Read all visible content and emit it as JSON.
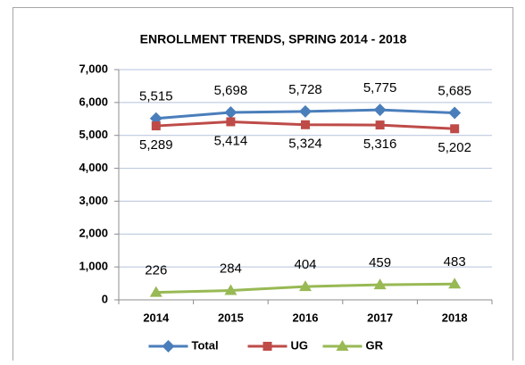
{
  "chart_data": {
    "type": "line",
    "title": "ENROLLMENT TRENDS,  SPRING 2014 - 2018",
    "categories": [
      "2014",
      "2015",
      "2016",
      "2017",
      "2018"
    ],
    "series": [
      {
        "name": "Total",
        "color": "#4a7ebb",
        "marker": "diamond",
        "values": [
          5515,
          5698,
          5728,
          5775,
          5685
        ],
        "value_labels": [
          "5,515",
          "5,698",
          "5,728",
          "5,775",
          "5,685"
        ]
      },
      {
        "name": "UG",
        "color": "#be4b48",
        "marker": "square",
        "values": [
          5289,
          5414,
          5324,
          5316,
          5202
        ],
        "value_labels": [
          "5,289",
          "5,414",
          "5,324",
          "5,316",
          "5,202"
        ]
      },
      {
        "name": "GR",
        "color": "#98b954",
        "marker": "triangle",
        "values": [
          226,
          284,
          404,
          459,
          483
        ],
        "value_labels": [
          "226",
          "284",
          "404",
          "459",
          "483"
        ]
      }
    ],
    "ylim": [
      0,
      7000
    ],
    "yticks": [
      0,
      {
        "value": 1000,
        "label": "1,000"
      },
      {
        "value": 2000,
        "label": "2,000"
      },
      {
        "value": 3000,
        "label": "3,000"
      },
      {
        "value": 4000,
        "label": "4,000"
      },
      {
        "value": 5000,
        "label": "5,000"
      },
      {
        "value": 6000,
        "label": "6,000"
      },
      {
        "value": 7000,
        "label": "7,000"
      }
    ],
    "grid": true,
    "legend": "bottom"
  }
}
